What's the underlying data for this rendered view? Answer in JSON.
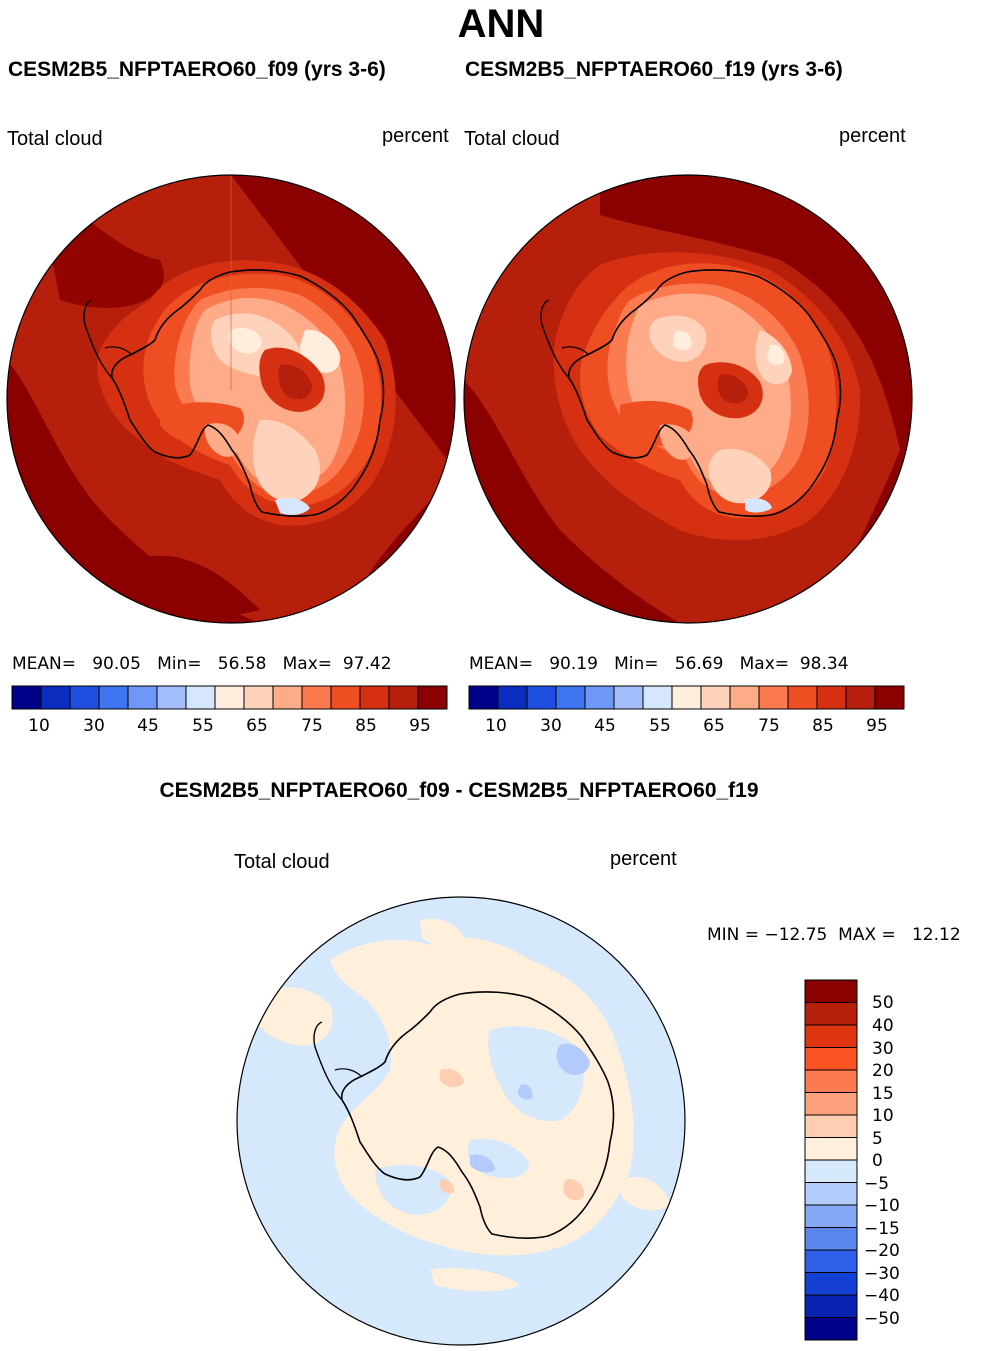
{
  "header": {
    "title": "ANN"
  },
  "panels": [
    {
      "run": "CESM2B5_NFPTAERO60_f09 (yrs 3-6)",
      "variable": "Total cloud",
      "units": "percent",
      "stats": {
        "mean_label": "MEAN=",
        "mean": "90.05",
        "min_label": "Min=",
        "min": "56.58",
        "max_label": "Max=",
        "max": "97.42"
      },
      "colorbar_ticks": [
        "10",
        "30",
        "45",
        "55",
        "65",
        "75",
        "85",
        "95"
      ]
    },
    {
      "run": "CESM2B5_NFPTAERO60_f19 (yrs 3-6)",
      "variable": "Total cloud",
      "units": "percent",
      "stats": {
        "mean_label": "MEAN=",
        "mean": "90.19",
        "min_label": "Min=",
        "min": "56.69",
        "max_label": "Max=",
        "max": "98.34"
      },
      "colorbar_ticks": [
        "10",
        "30",
        "45",
        "55",
        "65",
        "75",
        "85",
        "95"
      ]
    }
  ],
  "diff": {
    "title": "CESM2B5_NFPTAERO60_f09 - CESM2B5_NFPTAERO60_f19",
    "variable": "Total cloud",
    "units": "percent",
    "minmax": "MIN = −12.75  MAX =   12.12",
    "colorbar_ticks": [
      "50",
      "40",
      "30",
      "20",
      "15",
      "10",
      "5",
      "0",
      "−5",
      "−10",
      "−15",
      "−20",
      "−30",
      "−40",
      "−50"
    ]
  },
  "colors": {
    "abs_scale": [
      "#00008b",
      "#0b2dbf",
      "#1f4fe0",
      "#3f74f0",
      "#6e98f7",
      "#a3bdfa",
      "#d6e6fc",
      "#ffeedd",
      "#ffd2bb",
      "#fdab88",
      "#fb7a50",
      "#ef4e22",
      "#d53012",
      "#b51f0c",
      "#8b0000"
    ],
    "diff_scale": [
      "#8b0000",
      "#b51f0c",
      "#de3510",
      "#fb5224",
      "#fb7a50",
      "#fda07c",
      "#ffcdb2",
      "#ffefdb",
      "#d6e8fc",
      "#b3cbfa",
      "#86a9f5",
      "#5b86ee",
      "#2f5ee8",
      "#133fd2",
      "#0b22b0",
      "#00008b"
    ]
  }
}
